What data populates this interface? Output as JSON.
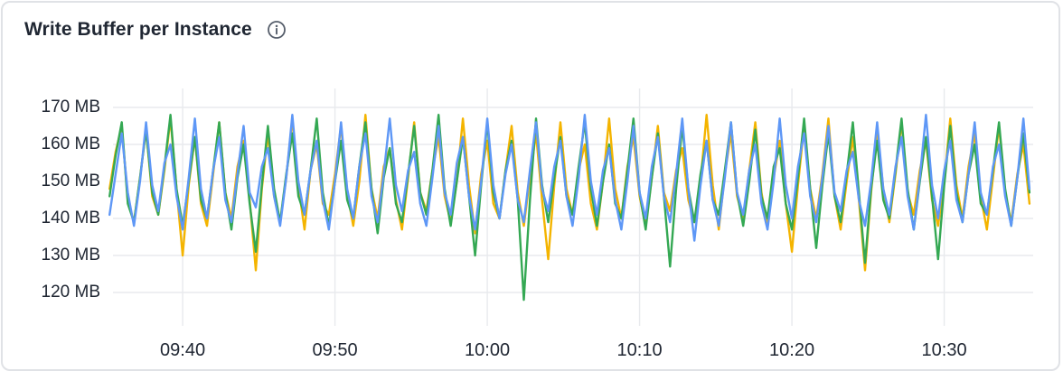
{
  "card": {
    "title": "Write Buffer per Instance"
  },
  "icons": {
    "info": "info-icon"
  },
  "colors": {
    "series_blue": "#5e97f6",
    "series_green": "#34a853",
    "series_yellow": "#f4b400",
    "grid": "#e8eaed",
    "text": "#202733",
    "card_border": "#e0e2e6",
    "background": "#ffffff"
  },
  "chart_data": {
    "type": "line",
    "title": "Write Buffer per Instance",
    "unit": "MB",
    "xlabel": "",
    "ylabel": "",
    "grid": true,
    "legend": "none",
    "ylim_mb": [
      115,
      173
    ],
    "sample_step_min": 0.4,
    "y_ticks": [
      {
        "label": "170 MB",
        "value": 170
      },
      {
        "label": "160 MB",
        "value": 160
      },
      {
        "label": "150 MB",
        "value": 150
      },
      {
        "label": "140 MB",
        "value": 140
      },
      {
        "label": "130 MB",
        "value": 130
      },
      {
        "label": "120 MB",
        "value": 120
      }
    ],
    "x_ticks": [
      {
        "label": "09:40",
        "minute_offset": 4.8
      },
      {
        "label": "09:50",
        "minute_offset": 14.8
      },
      {
        "label": "10:00",
        "minute_offset": 24.8
      },
      {
        "label": "10:10",
        "minute_offset": 34.8
      },
      {
        "label": "10:20",
        "minute_offset": 44.8
      },
      {
        "label": "10:30",
        "minute_offset": 54.8
      }
    ],
    "series": [
      {
        "name": "series-yellow",
        "color": "#f4b400",
        "values": [
          148,
          158,
          165,
          145,
          139,
          151,
          164,
          146,
          141,
          153,
          167,
          148,
          130,
          149,
          162,
          144,
          138,
          152,
          166,
          147,
          140,
          154,
          161,
          145,
          126,
          148,
          163,
          146,
          139,
          151,
          167,
          149,
          137,
          153,
          160,
          144,
          141,
          152,
          165,
          147,
          138,
          150,
          168,
          148,
          140,
          154,
          159,
          145,
          137,
          151,
          166,
          147,
          142,
          153,
          162,
          146,
          139,
          150,
          167,
          149,
          136,
          152,
          161,
          144,
          140,
          153,
          165,
          147,
          138,
          151,
          163,
          145,
          129,
          149,
          166,
          148,
          141,
          153,
          160,
          144,
          137,
          150,
          167,
          148,
          140,
          154,
          162,
          146,
          138,
          151,
          165,
          147,
          142,
          153,
          159,
          145,
          139,
          150,
          168,
          149,
          137,
          152,
          163,
          146,
          140,
          153,
          166,
          147,
          138,
          151,
          161,
          144,
          131,
          149,
          165,
          148,
          140,
          152,
          167,
          146,
          137,
          150,
          162,
          145,
          126,
          147,
          164,
          148,
          139,
          152,
          166,
          147,
          141,
          153,
          161,
          145,
          138,
          150,
          167,
          149,
          140,
          154,
          163,
          146,
          137,
          151,
          165,
          147,
          139,
          152,
          160,
          144
        ]
      },
      {
        "name": "series-green",
        "color": "#34a853",
        "values": [
          146,
          157,
          166,
          144,
          139,
          151,
          164,
          147,
          141,
          154,
          168,
          148,
          138,
          150,
          162,
          145,
          140,
          153,
          166,
          147,
          137,
          151,
          160,
          144,
          131,
          149,
          165,
          148,
          139,
          152,
          163,
          146,
          141,
          153,
          167,
          147,
          138,
          150,
          161,
          145,
          140,
          154,
          166,
          148,
          136,
          151,
          159,
          144,
          139,
          152,
          165,
          147,
          141,
          153,
          168,
          148,
          138,
          150,
          162,
          146,
          130,
          149,
          166,
          147,
          140,
          153,
          161,
          145,
          118,
          145,
          167,
          149,
          139,
          151,
          162,
          146,
          141,
          154,
          166,
          148,
          138,
          150,
          160,
          144,
          140,
          153,
          167,
          147,
          137,
          151,
          163,
          146,
          127,
          148,
          165,
          148,
          139,
          152,
          161,
          145,
          141,
          153,
          166,
          147,
          138,
          150,
          164,
          146,
          140,
          154,
          159,
          144,
          137,
          151,
          167,
          148,
          132,
          149,
          163,
          146,
          139,
          152,
          166,
          147,
          128,
          148,
          161,
          145,
          140,
          153,
          167,
          148,
          137,
          150,
          162,
          146,
          129,
          149,
          165,
          147,
          139,
          152,
          160,
          144,
          141,
          153,
          166,
          148,
          138,
          151,
          163,
          147
        ]
      },
      {
        "name": "series-blue",
        "color": "#5e97f6",
        "values": [
          141,
          152,
          163,
          147,
          138,
          150,
          166,
          149,
          142,
          155,
          160,
          146,
          137,
          151,
          167,
          148,
          140,
          153,
          162,
          145,
          139,
          152,
          165,
          147,
          143,
          154,
          159,
          146,
          138,
          151,
          168,
          150,
          141,
          153,
          161,
          145,
          137,
          150,
          166,
          148,
          140,
          154,
          163,
          146,
          139,
          152,
          167,
          149,
          142,
          153,
          158,
          144,
          138,
          151,
          165,
          147,
          141,
          155,
          162,
          146,
          137,
          150,
          167,
          149,
          140,
          152,
          160,
          145,
          139,
          153,
          166,
          148,
          142,
          154,
          161,
          146,
          138,
          151,
          168,
          150,
          141,
          153,
          159,
          145,
          137,
          150,
          165,
          147,
          140,
          154,
          162,
          146,
          139,
          152,
          167,
          148,
          134,
          149,
          161,
          145,
          138,
          151,
          166,
          147,
          141,
          153,
          160,
          144,
          137,
          150,
          167,
          149,
          140,
          154,
          163,
          146,
          139,
          151,
          165,
          147,
          142,
          153,
          158,
          145,
          138,
          150,
          166,
          148,
          141,
          154,
          162,
          146,
          137,
          151,
          168,
          149,
          140,
          153,
          161,
          145,
          139,
          152,
          166,
          147,
          141,
          154,
          160,
          146,
          138,
          151,
          167,
          148
        ]
      }
    ]
  }
}
